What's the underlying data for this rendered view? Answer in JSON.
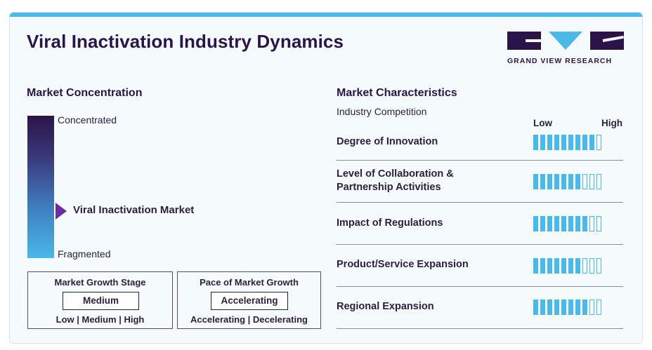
{
  "title": "Viral Inactivation Industry Dynamics",
  "logo": {
    "text": "GRAND VIEW RESEARCH",
    "colors": {
      "dark": "#2a1448",
      "light": "#4ab8e8"
    }
  },
  "concentration": {
    "title": "Market Concentration",
    "top_label": "Concentrated",
    "bottom_label": "Fragmented",
    "marker_label": "Viral Inactivation Market"
  },
  "growth_stage": {
    "title": "Market Growth Stage",
    "value": "Medium",
    "options": "Low | Medium | High"
  },
  "growth_pace": {
    "title": "Pace of Market Growth",
    "value": "Accelerating",
    "options": "Accelerating | Decelerating"
  },
  "characteristics": {
    "title": "Market Characteristics",
    "subtitle": "Industry Competition",
    "low_label": "Low",
    "high_label": "High",
    "max_level": 10,
    "items": [
      {
        "label": "Degree of Innovation",
        "level": 9
      },
      {
        "label": "Level of Collaboration & Partnership Activities",
        "level": 7
      },
      {
        "label": "Impact of Regulations",
        "level": 8
      },
      {
        "label": "Product/Service Expansion",
        "level": 7
      },
      {
        "label": "Regional Expansion",
        "level": 8
      }
    ]
  },
  "colors": {
    "accent": "#4ab8e8",
    "primary": "#2a1448",
    "marker": "#6a2c9e"
  }
}
